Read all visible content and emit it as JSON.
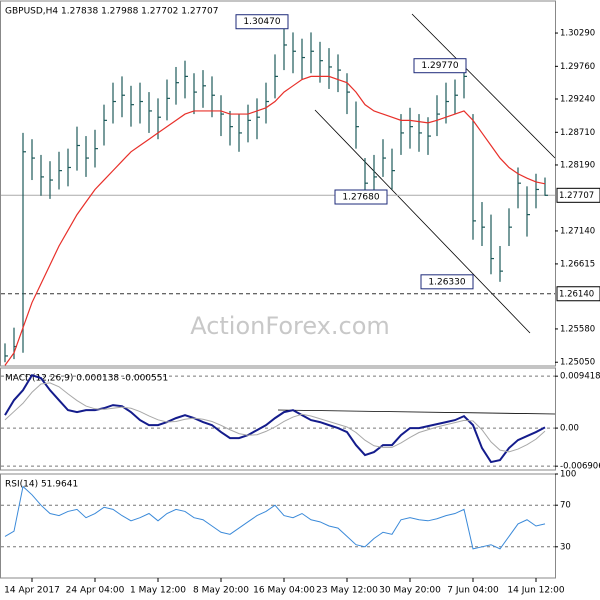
{
  "chart_data": [
    {
      "type": "ohlc",
      "title": "GBPUSD,H4  1.27838 1.27988 1.27702 1.27707",
      "watermark": "ActionForex.com",
      "ylim": [
        1.2499,
        1.308
      ],
      "yticks": [
        {
          "value": 1.3029,
          "label": "1.30290"
        },
        {
          "value": 1.2976,
          "label": "1.29760"
        },
        {
          "value": 1.2924,
          "label": "1.29240"
        },
        {
          "value": 1.2871,
          "label": "1.28710"
        },
        {
          "value": 1.2819,
          "label": "1.28190"
        },
        {
          "value": 1.2714,
          "label": "1.27140"
        },
        {
          "value": 1.26615,
          "label": "1.26615"
        },
        {
          "value": 1.2558,
          "label": "1.25580"
        },
        {
          "value": 1.2505,
          "label": "1.25050"
        }
      ],
      "color": "#1d5a5a",
      "ma_color": "#e8302a",
      "high": [
        1.2535,
        1.256,
        1.287,
        1.286,
        1.2835,
        1.2825,
        1.284,
        1.2845,
        1.288,
        1.2865,
        1.2875,
        1.2915,
        1.295,
        1.296,
        1.2945,
        1.295,
        1.2935,
        1.2925,
        1.2955,
        1.2975,
        1.2985,
        1.2965,
        1.297,
        1.296,
        1.293,
        1.2905,
        1.29,
        1.2915,
        1.2925,
        1.295,
        1.2995,
        1.3047,
        1.303,
        1.302,
        1.303,
        1.3015,
        1.3005,
        1.2995,
        1.2965,
        1.292,
        1.283,
        1.2835,
        1.286,
        1.2845,
        1.29,
        1.291,
        1.29,
        1.2895,
        1.293,
        1.295,
        1.2955,
        1.2977,
        1.29,
        1.276,
        1.274,
        1.269,
        1.275,
        1.2815,
        1.2785,
        1.2805,
        1.2799
      ],
      "low": [
        1.2505,
        1.251,
        1.252,
        1.2795,
        1.277,
        1.2765,
        1.278,
        1.2785,
        1.281,
        1.28,
        1.2815,
        1.285,
        1.2885,
        1.2895,
        1.288,
        1.2885,
        1.287,
        1.286,
        1.289,
        1.2915,
        1.2925,
        1.29,
        1.291,
        1.2895,
        1.2865,
        1.285,
        1.284,
        1.2855,
        1.286,
        1.2885,
        1.2925,
        1.297,
        1.2965,
        1.2955,
        1.2965,
        1.295,
        1.294,
        1.2935,
        1.29,
        1.2845,
        1.2768,
        1.2775,
        1.28,
        1.278,
        1.2835,
        1.2845,
        1.284,
        1.2835,
        1.2865,
        1.2885,
        1.29,
        1.2925,
        1.27,
        1.269,
        1.2645,
        1.2633,
        1.269,
        1.275,
        1.2705,
        1.275,
        1.277
      ],
      "close": [
        1.2515,
        1.253,
        1.284,
        1.283,
        1.28,
        1.2795,
        1.281,
        1.2815,
        1.285,
        1.283,
        1.2845,
        1.289,
        1.292,
        1.293,
        1.2915,
        1.292,
        1.2905,
        1.2895,
        1.2925,
        1.295,
        1.296,
        1.2935,
        1.2945,
        1.293,
        1.29,
        1.288,
        1.287,
        1.289,
        1.2895,
        1.292,
        1.296,
        1.301,
        1.3,
        1.299,
        1.3,
        1.2985,
        1.2975,
        1.297,
        1.2935,
        1.288,
        1.279,
        1.28,
        1.283,
        1.281,
        1.287,
        1.288,
        1.287,
        1.2865,
        1.29,
        1.292,
        1.293,
        1.296,
        1.273,
        1.272,
        1.267,
        1.265,
        1.272,
        1.279,
        1.274,
        1.278,
        1.27707
      ],
      "ma": [
        1.25,
        1.252,
        1.256,
        1.26,
        1.263,
        1.266,
        1.269,
        1.2715,
        1.274,
        1.276,
        1.278,
        1.2795,
        1.281,
        1.2825,
        1.284,
        1.285,
        1.286,
        1.287,
        1.288,
        1.289,
        1.29,
        1.2905,
        1.2905,
        1.2905,
        1.2905,
        1.29,
        1.29,
        1.29,
        1.2905,
        1.291,
        1.292,
        1.2935,
        1.2945,
        1.2955,
        1.296,
        1.296,
        1.296,
        1.2955,
        1.295,
        1.2935,
        1.2915,
        1.2905,
        1.29,
        1.2895,
        1.289,
        1.289,
        1.2888,
        1.2886,
        1.289,
        1.2895,
        1.29,
        1.2905,
        1.289,
        1.287,
        1.285,
        1.283,
        1.2815,
        1.2805,
        1.2798,
        1.2792,
        1.2789
      ],
      "last": {
        "value": 1.27707,
        "label": "1.27707"
      },
      "level": {
        "value": 1.2614,
        "label": "1.26140"
      },
      "annotations": [
        {
          "value": 1.3047,
          "label": "1.30470"
        },
        {
          "value": 1.2977,
          "label": "1.29770"
        },
        {
          "value": 1.2768,
          "label": "1.27680"
        },
        {
          "value": 1.2633,
          "label": "1.26330"
        }
      ]
    },
    {
      "type": "line",
      "title": "MACD(12,26,9) 0.000138 -0.000551",
      "ylim": [
        -0.0076,
        0.0109
      ],
      "yticks": [
        0.009418,
        {
          "value": 0,
          "label": "0.00"
        },
        -0.006906
      ],
      "series": [
        {
          "color": "#141c8c",
          "values": [
            0.00235,
            0.00507,
            0.00688,
            0.0096,
            0.00906,
            0.00688,
            0.00507,
            0.00326,
            0.0029,
            0.00326,
            0.00326,
            0.00362,
            0.00417,
            0.00398,
            0.0029,
            0.00145,
            0.00054,
            0.00054,
            0.00109,
            0.00181,
            0.00235,
            0.00181,
            0.00109,
            0.00054,
            -0.00072,
            -0.00181,
            -0.00181,
            -0.00127,
            -0.00036,
            0.00054,
            0.00181,
            0.0029,
            0.00326,
            0.00235,
            0.00145,
            0.00109,
            0.00054,
            0,
            -0.00072,
            -0.00308,
            -0.00489,
            -0.00435,
            -0.00308,
            -0.00308,
            -0.00127,
            0,
            0,
            0.00036,
            0.00072,
            0.00109,
            0.00145,
            0.00217,
            0.00054,
            -0.00362,
            -0.00616,
            -0.0058,
            -0.00362,
            -0.00217,
            -0.00145,
            -0.00072,
            0.000138
          ]
        },
        {
          "color": "#a8a8a8",
          "values": [
            0.0015,
            0.003,
            0.0045,
            0.0065,
            0.008,
            0.0082,
            0.0075,
            0.0062,
            0.005,
            0.004,
            0.0035,
            0.0034,
            0.0036,
            0.0038,
            0.0036,
            0.003,
            0.0022,
            0.0015,
            0.0011,
            0.0012,
            0.0016,
            0.0018,
            0.0016,
            0.0012,
            0.0005,
            -0.0003,
            -0.001,
            -0.0013,
            -0.0012,
            -0.0006,
            0.0002,
            0.0012,
            0.002,
            0.0025,
            0.0022,
            0.0017,
            0.0012,
            0.0007,
            0.0002,
            -0.0008,
            -0.0022,
            -0.0032,
            -0.0035,
            -0.0035,
            -0.0027,
            -0.0017,
            -0.0008,
            -0.0003,
            0.0002,
            0.0006,
            0.001,
            0.0014,
            0.0013,
            -0.0003,
            -0.0025,
            -0.004,
            -0.0043,
            -0.0038,
            -0.003,
            -0.002,
            -0.000551
          ]
        }
      ]
    },
    {
      "type": "line",
      "title": "RSI(14) 51.9641",
      "ylim": [
        0,
        100
      ],
      "yticks": [
        100,
        70,
        30
      ],
      "series": [
        {
          "color": "#3b8ad9",
          "values": [
            40,
            45,
            88,
            80,
            70,
            62,
            60,
            64,
            66,
            58,
            62,
            68,
            66,
            60,
            55,
            58,
            62,
            55,
            62,
            66,
            64,
            58,
            56,
            50,
            44,
            42,
            48,
            54,
            60,
            64,
            70,
            60,
            58,
            62,
            56,
            54,
            50,
            48,
            40,
            32,
            30,
            38,
            44,
            42,
            56,
            58,
            56,
            55,
            57,
            60,
            62,
            66,
            28,
            30,
            32,
            28,
            40,
            52,
            56,
            50,
            52
          ]
        }
      ],
      "categories": [
        null,
        null,
        null,
        "14 Apr 2017",
        null,
        null,
        null,
        null,
        null,
        null,
        "24 Apr 04:00",
        null,
        null,
        null,
        null,
        null,
        null,
        "1 May 12:00",
        null,
        null,
        null,
        null,
        null,
        null,
        "8 May 20:00",
        null,
        null,
        null,
        null,
        null,
        null,
        "16 May 04:00",
        null,
        null,
        null,
        null,
        null,
        null,
        "23 May 12:00",
        null,
        null,
        null,
        null,
        null,
        null,
        "30 May 20:00",
        null,
        null,
        null,
        null,
        null,
        null,
        "7 Jun 04:00",
        null,
        null,
        null,
        null,
        null,
        null,
        "14 Jun 12:00",
        null
      ]
    }
  ]
}
